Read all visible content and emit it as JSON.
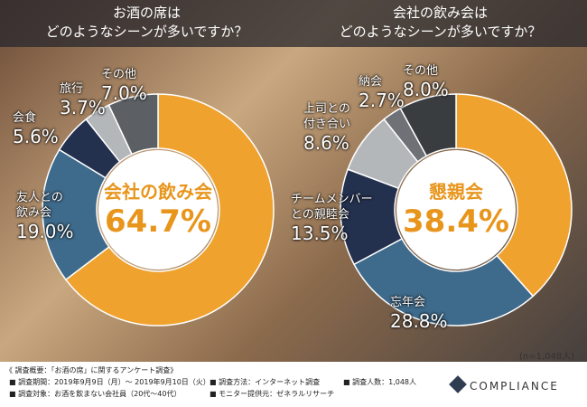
{
  "chart_data": [
    {
      "type": "pie",
      "title": "お酒の席は\nどのようなシーンが多いですか？",
      "categories": [
        "会社の飲み会",
        "友人との\n飲み会",
        "会食",
        "旅行",
        "その他"
      ],
      "values": [
        64.7,
        19.0,
        5.6,
        3.7,
        7.0
      ],
      "value_labels": [
        "64.7%",
        "19.0%",
        "5.6%",
        "3.7%",
        "7.0%"
      ],
      "colors": [
        "#f0a22e",
        "#3e6a8b",
        "#23304e",
        "#b4b7ba",
        "#5c6064"
      ]
    },
    {
      "type": "pie",
      "title": "会社の飲み会は\nどのようなシーンが多いですか？",
      "categories": [
        "懇親会",
        "忘年会",
        "チームメンバー\nとの親睦会",
        "上司との\n付き合い",
        "納会",
        "その他"
      ],
      "values": [
        38.4,
        28.8,
        13.5,
        8.6,
        2.7,
        8.0
      ],
      "value_labels": [
        "38.4%",
        "28.8%",
        "13.5%",
        "8.6%",
        "2.7%",
        "8.0%"
      ],
      "colors": [
        "#f0a22e",
        "#3e6a8b",
        "#23304e",
        "#b4b7ba",
        "#6e7277",
        "#3a3d40"
      ],
      "note": "(n=1,048人)"
    }
  ],
  "footer": {
    "heading": "《 調査概要：「お酒の席」に関するアンケート調査》",
    "items": [
      "■ 調査期間：2019年9月9日（月）～ 2019年9月10日（火）",
      "■ 調査方法：インターネット調査",
      "■ 調査人数：1,048人",
      "■ 調査対象：お酒を飲まない会社員（20代〜40代）",
      "■ モニター提供元：ゼネラルリサーチ"
    ],
    "logo": "COMPLIANCE"
  }
}
